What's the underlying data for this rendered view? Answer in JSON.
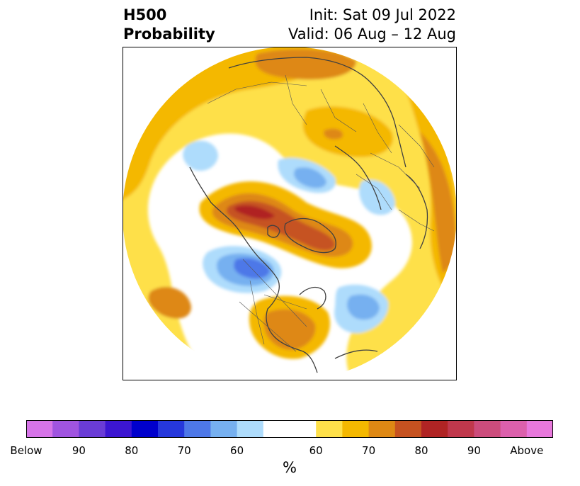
{
  "header": {
    "variable": "H500",
    "product": "Probability",
    "init": "Init: Sat 09 Jul 2022",
    "valid": "Valid: 06 Aug – 12 Aug"
  },
  "map": {
    "projection": "north-polar-stereographic",
    "outline_color": "#404040",
    "anomaly_regions": [
      {
        "region": "alaska-bering-ridge",
        "category": "above",
        "peak_percent": 80
      },
      {
        "region": "greenland-canadian-archipelago-ridge",
        "category": "above",
        "peak_percent": 75
      },
      {
        "region": "eastern-united-states-ridge",
        "category": "above",
        "peak_percent": 70
      },
      {
        "region": "north-pacific-ridge",
        "category": "above",
        "peak_percent": 70
      },
      {
        "region": "siberia-ridge",
        "category": "above",
        "peak_percent": 70
      },
      {
        "region": "western-europe-ridge",
        "category": "above",
        "peak_percent": 70
      },
      {
        "region": "western-canada-trough",
        "category": "below",
        "peak_percent": 80
      },
      {
        "region": "north-atlantic-trough",
        "category": "below",
        "peak_percent": 70
      },
      {
        "region": "scandinavia-barents-trough",
        "category": "below",
        "peak_percent": 70
      },
      {
        "region": "east-siberian-sea-trough",
        "category": "below",
        "peak_percent": 60
      },
      {
        "region": "kazakhstan-trough",
        "category": "below",
        "peak_percent": 60
      }
    ]
  },
  "colorbar": {
    "unit": "%",
    "tick_labels": [
      "Below",
      "90",
      "80",
      "70",
      "60",
      "60",
      "70",
      "80",
      "90",
      "Above"
    ],
    "colors": [
      "#d674e8",
      "#a054e0",
      "#6a3cd6",
      "#3c16d2",
      "#0000cc",
      "#2638dc",
      "#4e78e8",
      "#76b0f0",
      "#aedcfc",
      "#ffffff",
      "#fee04a",
      "#f4b800",
      "#de8814",
      "#c65220",
      "#b02424",
      "#c0384c",
      "#cc4c7c",
      "#dc60ac",
      "#e878dc"
    ]
  }
}
